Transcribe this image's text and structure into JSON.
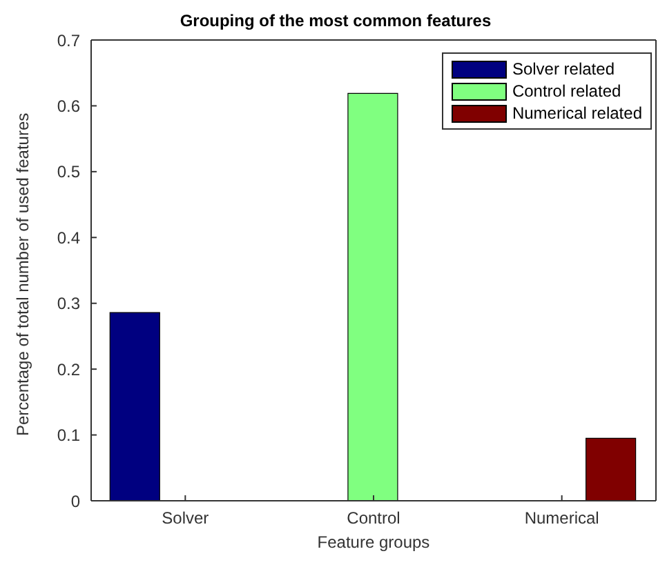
{
  "chart_data": {
    "type": "bar",
    "title": "Grouping of the most common features",
    "xlabel": "Feature groups",
    "ylabel": "Percentage of total number of used features",
    "categories": [
      "Solver",
      "Control",
      "Numerical"
    ],
    "series": [
      {
        "name": "Solver related",
        "color": "#000080",
        "values": [
          0.286,
          0,
          0
        ]
      },
      {
        "name": "Control related",
        "color": "#80ff80",
        "values": [
          0,
          0.619,
          0
        ]
      },
      {
        "name": "Numerical related",
        "color": "#800000",
        "values": [
          0,
          0,
          0.095
        ]
      }
    ],
    "ylim": [
      0,
      0.7
    ],
    "yticks": [
      0,
      0.1,
      0.2,
      0.3,
      0.4,
      0.5,
      0.6,
      0.7
    ],
    "grid": false,
    "legend": "top right"
  }
}
